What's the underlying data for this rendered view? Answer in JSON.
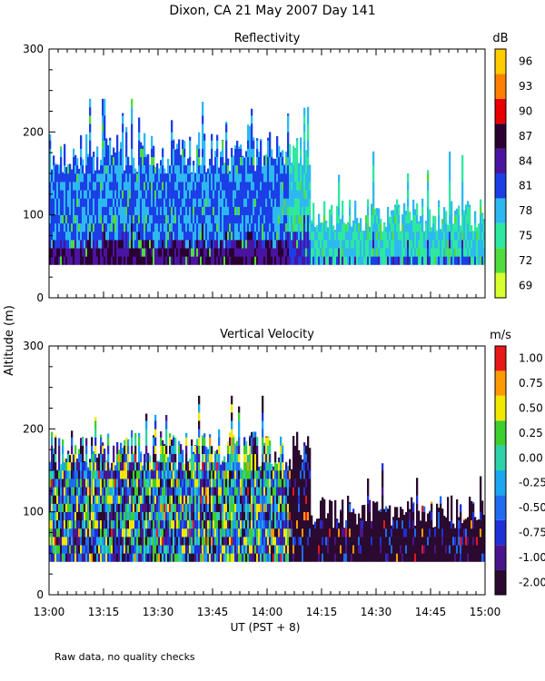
{
  "figure": {
    "title": "Dixon, CA 21 May 2007  Day 141",
    "shared_ylabel": "Altitude (m)",
    "shared_xlabel": "UT  (PST + 8)",
    "footnote": "Raw data, no quality checks"
  },
  "chart_data": [
    {
      "type": "heatmap",
      "title": "Reflectivity",
      "xlabel": "UT  (PST + 8)",
      "ylabel": "Altitude (m)",
      "x_ticks": [
        "13:00",
        "13:15",
        "13:30",
        "13:45",
        "14:00",
        "14:15",
        "14:30",
        "14:45",
        "15:00"
      ],
      "xlim_minutes_ut": [
        780,
        900
      ],
      "ylim": [
        0,
        300
      ],
      "y_ticks": [
        0,
        100,
        200,
        300
      ],
      "colorbar": {
        "unit": "dB",
        "ticks": [
          "69",
          "72",
          "75",
          "78",
          "81",
          "84",
          "87",
          "90",
          "93",
          "96"
        ],
        "colors": [
          "#d8ff2e",
          "#4fdc3c",
          "#2ee8a0",
          "#2eb8f0",
          "#1c3ee6",
          "#4a14a0",
          "#2a0030",
          "#e80000",
          "#ff8000",
          "#ffcc00"
        ]
      },
      "data_extent": {
        "x_range": [
          "13:00",
          "15:00"
        ],
        "altitude_range_m": [
          40,
          240
        ],
        "note": "Echo column top ~180-200 m until about 14:20, then ~80-120 m"
      }
    },
    {
      "type": "heatmap",
      "title": "Vertical Velocity",
      "xlabel": "UT  (PST + 8)",
      "ylabel": "Altitude (m)",
      "x_ticks": [
        "13:00",
        "13:15",
        "13:30",
        "13:45",
        "14:00",
        "14:15",
        "14:30",
        "14:45",
        "15:00"
      ],
      "xlim_minutes_ut": [
        780,
        900
      ],
      "ylim": [
        0,
        300
      ],
      "y_ticks": [
        0,
        100,
        200,
        300
      ],
      "colorbar": {
        "unit": "m/s",
        "ticks": [
          "-2.00",
          "-1.00",
          "-0.75",
          "-0.50",
          "-0.25",
          "0.00",
          "0.25",
          "0.50",
          "0.75",
          "1.00"
        ],
        "colors": [
          "#2a0a2e",
          "#4a148c",
          "#2030d8",
          "#1f6cf0",
          "#19a8f0",
          "#2ed2a8",
          "#3ccf2e",
          "#f0e800",
          "#ff9900",
          "#e81818"
        ]
      },
      "data_extent": {
        "x_range": [
          "13:00",
          "15:00"
        ],
        "altitude_range_m": [
          40,
          240
        ],
        "note": "Mixed velocities early; mostly -2.00 m/s (dark) after 14:20"
      }
    }
  ]
}
